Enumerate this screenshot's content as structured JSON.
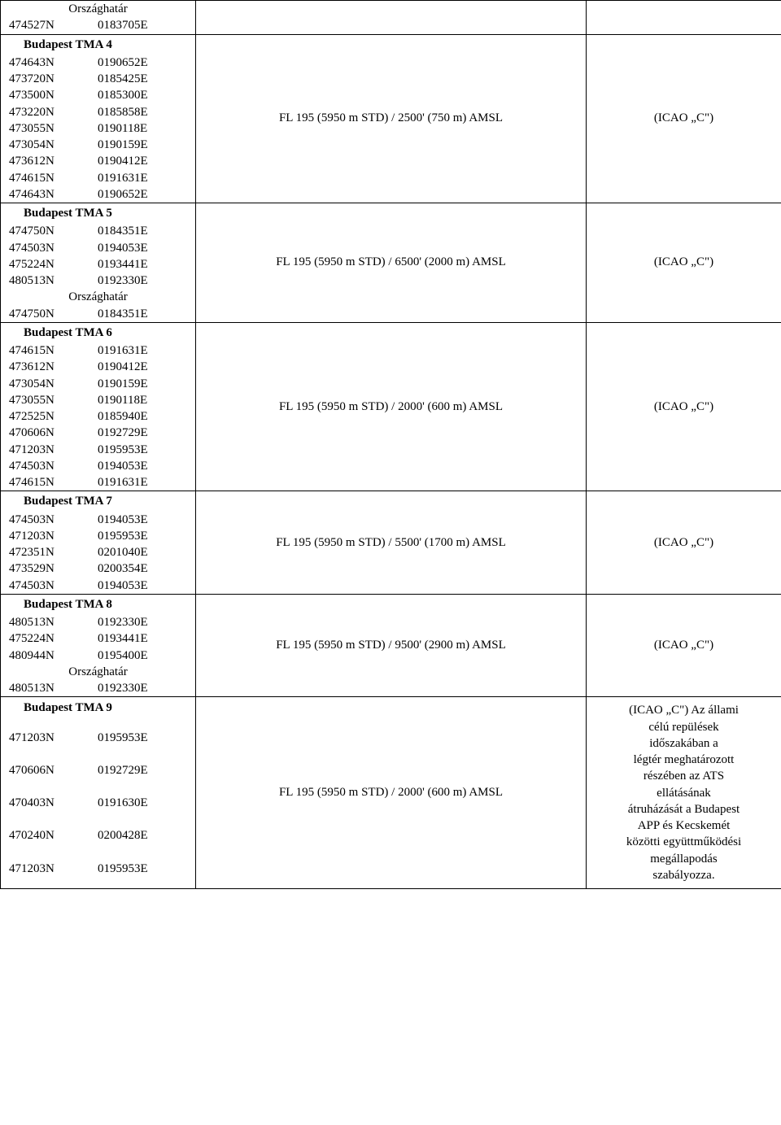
{
  "sections": [
    {
      "header": null,
      "preLines": [
        {
          "type": "center",
          "text": "Országhatár"
        },
        {
          "lat": "474527N",
          "lon": "0183705E"
        }
      ],
      "limits": null,
      "class": null,
      "rowSpanPre": true
    },
    {
      "header": "Budapest TMA 4",
      "coords": [
        {
          "lat": "474643N",
          "lon": "0190652E"
        },
        {
          "lat": "473720N",
          "lon": "0185425E"
        },
        {
          "lat": "473500N",
          "lon": "0185300E"
        },
        {
          "lat": "473220N",
          "lon": "0185858E"
        },
        {
          "lat": "473055N",
          "lon": "0190118E"
        },
        {
          "lat": "473054N",
          "lon": "0190159E"
        },
        {
          "lat": "473612N",
          "lon": "0190412E"
        },
        {
          "lat": "474615N",
          "lon": "0191631E"
        },
        {
          "lat": "474643N",
          "lon": "0190652E"
        }
      ],
      "limits": "FL 195 (5950 m STD) / 2500' (750 m) AMSL",
      "class": "(ICAO „C\")"
    },
    {
      "header": "Budapest TMA 5",
      "coords": [
        {
          "lat": "474750N",
          "lon": "0184351E"
        },
        {
          "lat": "474503N",
          "lon": "0194053E"
        },
        {
          "lat": "475224N",
          "lon": "0193441E"
        },
        {
          "lat": "480513N",
          "lon": "0192330E"
        },
        {
          "type": "center",
          "text": "Országhatár"
        },
        {
          "lat": "474750N",
          "lon": "0184351E"
        }
      ],
      "limits": "FL 195 (5950 m STD) / 6500' (2000 m) AMSL",
      "class": "(ICAO „C\")"
    },
    {
      "header": "Budapest TMA 6",
      "coords": [
        {
          "lat": "474615N",
          "lon": "0191631E"
        },
        {
          "lat": "473612N",
          "lon": "0190412E"
        },
        {
          "lat": "473054N",
          "lon": "0190159E"
        },
        {
          "lat": "473055N",
          "lon": "0190118E"
        },
        {
          "lat": "472525N",
          "lon": "0185940E"
        },
        {
          "lat": "470606N",
          "lon": "0192729E"
        },
        {
          "lat": "471203N",
          "lon": "0195953E"
        },
        {
          "lat": "474503N",
          "lon": "0194053E"
        },
        {
          "lat": "474615N",
          "lon": "0191631E"
        }
      ],
      "limits": "FL 195 (5950 m STD) / 2000' (600 m) AMSL",
      "class": "(ICAO „C\")"
    },
    {
      "header": "Budapest TMA 7",
      "coords": [
        {
          "lat": "474503N",
          "lon": "0194053E"
        },
        {
          "lat": "471203N",
          "lon": "0195953E"
        },
        {
          "lat": "472351N",
          "lon": "0201040E"
        },
        {
          "lat": "473529N",
          "lon": "0200354E"
        },
        {
          "lat": "474503N",
          "lon": "0194053E"
        }
      ],
      "limits": "FL 195 (5950 m STD) / 5500' (1700 m) AMSL",
      "class": "(ICAO „C\")"
    },
    {
      "header": "Budapest TMA 8",
      "coords": [
        {
          "lat": "480513N",
          "lon": "0192330E"
        },
        {
          "lat": "475224N",
          "lon": "0193441E"
        },
        {
          "lat": "480944N",
          "lon": "0195400E"
        },
        {
          "type": "center",
          "text": "Országhatár"
        },
        {
          "lat": "480513N",
          "lon": "0192330E"
        }
      ],
      "limits": "FL 195 (5950 m STD) / 9500' (2900 m) AMSL",
      "class": "(ICAO „C\")"
    },
    {
      "header": "Budapest TMA 9",
      "coords": [
        {
          "lat": "471203N",
          "lon": "0195953E"
        },
        {
          "lat": "470606N",
          "lon": "0192729E"
        },
        {
          "lat": "470403N",
          "lon": "0191630E"
        },
        {
          "lat": "470240N",
          "lon": "0200428E"
        },
        {
          "lat": "471203N",
          "lon": "0195953E"
        }
      ],
      "limits": "FL 195 (5950 m STD) / 2000' (600 m) AMSL",
      "classLines": [
        "(ICAO „C\") Az állami",
        "célú repülések",
        "időszakában a",
        "légtér meghatározott",
        "részében az ATS",
        "ellátásának",
        "átruházását a Budapest",
        "APP és Kecskemét",
        "közötti együttműködési",
        "megállapodás",
        "szabályozza."
      ],
      "compactCoords": false,
      "tallRows": true
    }
  ]
}
